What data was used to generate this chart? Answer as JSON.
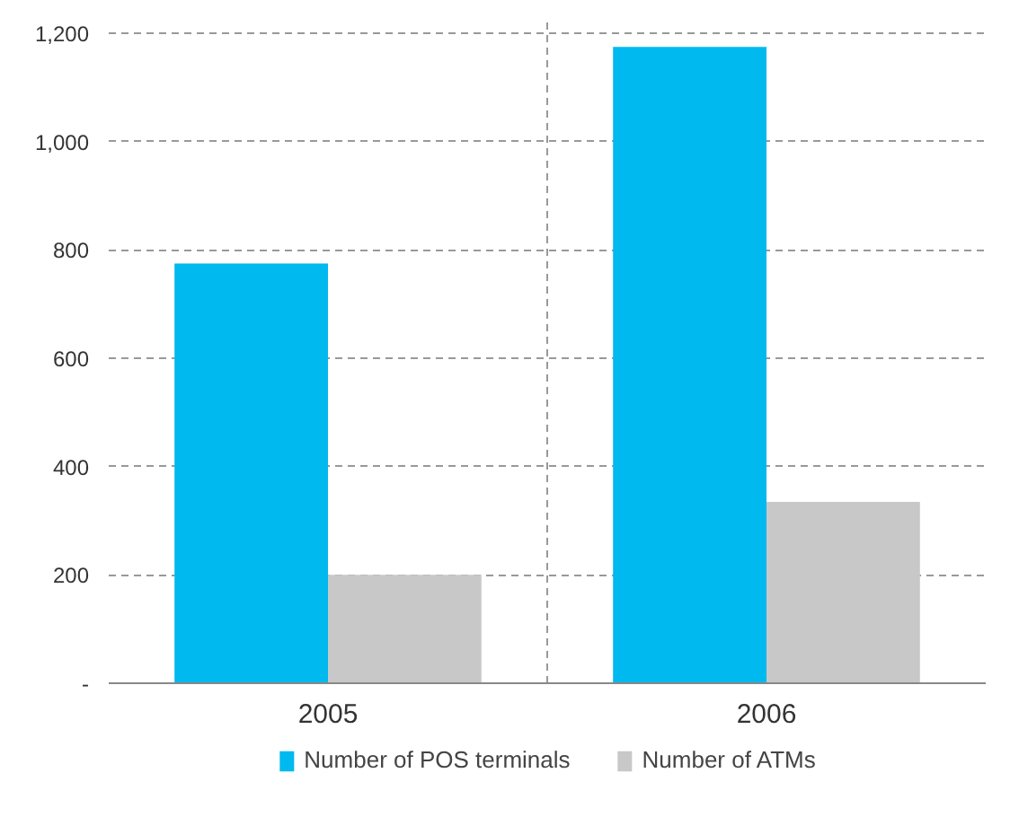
{
  "chart_data": {
    "type": "bar",
    "categories": [
      "2005",
      "2006"
    ],
    "series": [
      {
        "name": "Number of POS terminals",
        "color": "#00b9ee",
        "values": [
          775,
          1175
        ]
      },
      {
        "name": "Number of ATMs",
        "color": "#c8c8c8",
        "values": [
          200,
          335
        ]
      }
    ],
    "ylim": [
      0,
      1220
    ],
    "yticks": [
      {
        "value": 0,
        "label": "-"
      },
      200,
      400,
      600,
      800,
      {
        "value": 1000,
        "label": "1,000"
      },
      {
        "value": 1200,
        "label": "1,200"
      }
    ],
    "grid": true,
    "legend": "bottom"
  }
}
